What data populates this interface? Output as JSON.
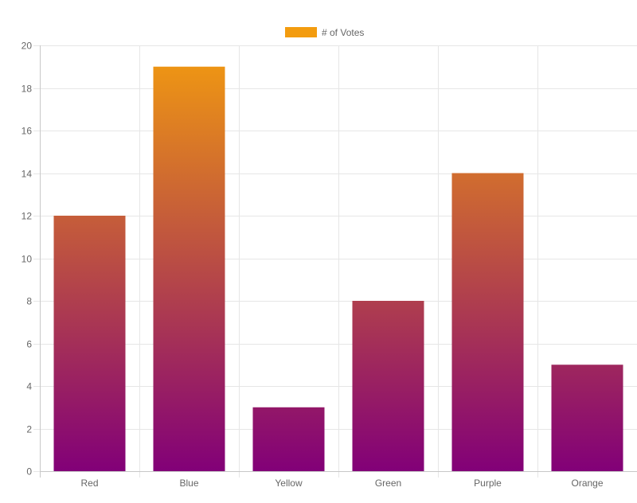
{
  "chart_data": {
    "type": "bar",
    "categories": [
      "Red",
      "Blue",
      "Yellow",
      "Green",
      "Purple",
      "Orange"
    ],
    "series": [
      {
        "name": "# of Votes",
        "values": [
          12,
          19,
          3,
          8,
          14,
          5
        ]
      }
    ],
    "ylim": [
      0,
      20
    ],
    "y_ticks": [
      "0",
      "2",
      "4",
      "6",
      "8",
      "10",
      "12",
      "14",
      "16",
      "18",
      "20"
    ],
    "grid": true,
    "legend": "top-center",
    "colors": {
      "gradient_top": "#f39c0f",
      "gradient_bottom": "#820078",
      "legend_swatch": "#f39c0f",
      "grid": "#e6e6e6",
      "axis": "#c8c8c8",
      "text": "#666666"
    }
  }
}
